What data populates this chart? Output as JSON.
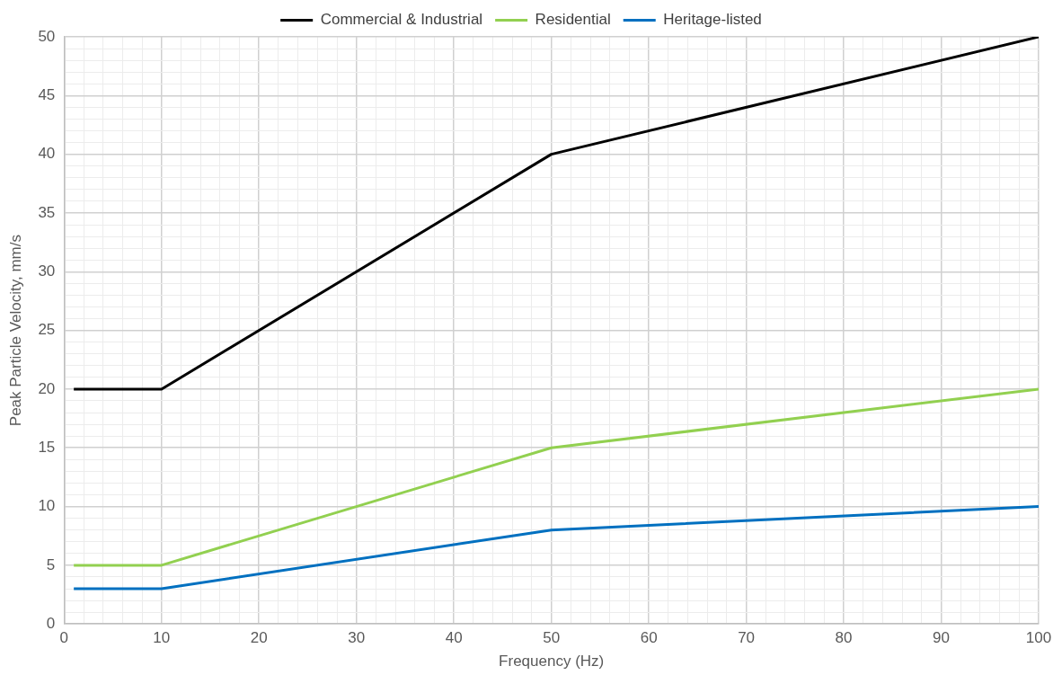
{
  "chart_data": {
    "type": "line",
    "xlabel": "Frequency (Hz)",
    "ylabel": "Peak Particle Velocity, mm/s",
    "x": [
      1,
      10,
      50,
      100
    ],
    "series": [
      {
        "name": "Commercial & Industrial",
        "color": "#000000",
        "values": [
          20,
          20,
          40,
          50
        ]
      },
      {
        "name": "Residential",
        "color": "#92d050",
        "values": [
          5,
          5,
          15,
          20
        ]
      },
      {
        "name": "Heritage-listed",
        "color": "#0070c0",
        "values": [
          3,
          3,
          8,
          10
        ]
      }
    ],
    "xlim": [
      0,
      100
    ],
    "xticks": [
      0,
      {
        "value": 2,
        "label": null
      },
      {
        "value": 4,
        "label": null
      },
      {
        "value": 6,
        "label": null
      },
      {
        "value": 8,
        "label": null
      },
      10,
      {
        "value": 12,
        "label": null
      },
      {
        "value": 14,
        "label": null
      },
      {
        "value": 16,
        "label": null
      },
      {
        "value": 18,
        "label": null
      },
      20,
      {
        "value": 22,
        "label": null
      },
      {
        "value": 24,
        "label": null
      },
      {
        "value": 26,
        "label": null
      },
      {
        "value": 28,
        "label": null
      },
      30,
      {
        "value": 32,
        "label": null
      },
      {
        "value": 34,
        "label": null
      },
      {
        "value": 36,
        "label": null
      },
      {
        "value": 38,
        "label": null
      },
      40,
      {
        "value": 42,
        "label": null
      },
      {
        "value": 44,
        "label": null
      },
      {
        "value": 46,
        "label": null
      },
      {
        "value": 48,
        "label": null
      },
      50,
      {
        "value": 52,
        "label": null
      },
      {
        "value": 54,
        "label": null
      },
      {
        "value": 56,
        "label": null
      },
      {
        "value": 58,
        "label": null
      },
      60,
      {
        "value": 62,
        "label": null
      },
      {
        "value": 64,
        "label": null
      },
      {
        "value": 66,
        "label": null
      },
      {
        "value": 68,
        "label": null
      },
      70,
      {
        "value": 72,
        "label": null
      },
      {
        "value": 74,
        "label": null
      },
      {
        "value": 76,
        "label": null
      },
      {
        "value": 78,
        "label": null
      },
      80,
      {
        "value": 82,
        "label": null
      },
      {
        "value": 84,
        "label": null
      },
      {
        "value": 86,
        "label": null
      },
      {
        "value": 88,
        "label": null
      },
      90,
      {
        "value": 92,
        "label": null
      },
      {
        "value": 94,
        "label": null
      },
      {
        "value": 96,
        "label": null
      },
      {
        "value": 98,
        "label": null
      },
      100
    ],
    "ylim": [
      0,
      50
    ],
    "yticks": [
      0,
      {
        "value": 1,
        "label": null
      },
      {
        "value": 2,
        "label": null
      },
      {
        "value": 3,
        "label": null
      },
      {
        "value": 4,
        "label": null
      },
      5,
      {
        "value": 6,
        "label": null
      },
      {
        "value": 7,
        "label": null
      },
      {
        "value": 8,
        "label": null
      },
      {
        "value": 9,
        "label": null
      },
      10,
      {
        "value": 11,
        "label": null
      },
      {
        "value": 12,
        "label": null
      },
      {
        "value": 13,
        "label": null
      },
      {
        "value": 14,
        "label": null
      },
      15,
      {
        "value": 16,
        "label": null
      },
      {
        "value": 17,
        "label": null
      },
      {
        "value": 18,
        "label": null
      },
      {
        "value": 19,
        "label": null
      },
      20,
      {
        "value": 21,
        "label": null
      },
      {
        "value": 22,
        "label": null
      },
      {
        "value": 23,
        "label": null
      },
      {
        "value": 24,
        "label": null
      },
      25,
      {
        "value": 26,
        "label": null
      },
      {
        "value": 27,
        "label": null
      },
      {
        "value": 28,
        "label": null
      },
      {
        "value": 29,
        "label": null
      },
      30,
      {
        "value": 31,
        "label": null
      },
      {
        "value": 32,
        "label": null
      },
      {
        "value": 33,
        "label": null
      },
      {
        "value": 34,
        "label": null
      },
      35,
      {
        "value": 36,
        "label": null
      },
      {
        "value": 37,
        "label": null
      },
      {
        "value": 38,
        "label": null
      },
      {
        "value": 39,
        "label": null
      },
      40,
      {
        "value": 41,
        "label": null
      },
      {
        "value": 42,
        "label": null
      },
      {
        "value": 43,
        "label": null
      },
      {
        "value": 44,
        "label": null
      },
      45,
      {
        "value": 46,
        "label": null
      },
      {
        "value": 47,
        "label": null
      },
      {
        "value": 48,
        "label": null
      },
      {
        "value": 49,
        "label": null
      },
      50
    ],
    "grid": true,
    "legend": "top",
    "marker": "none",
    "line_style": "solid"
  }
}
